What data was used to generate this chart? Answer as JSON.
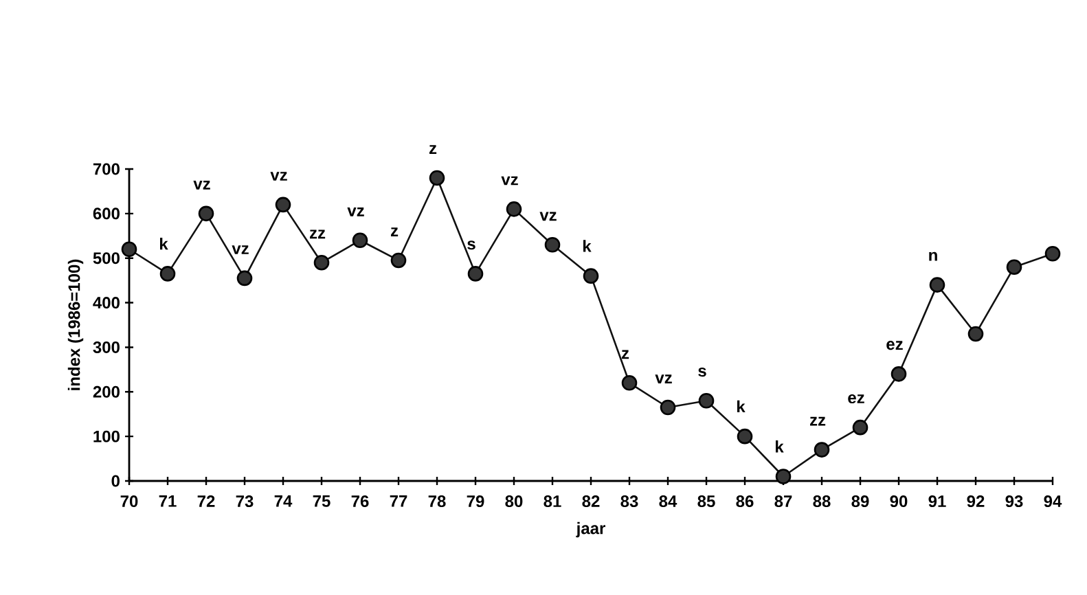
{
  "chart_data": {
    "type": "line",
    "xlabel": "jaar",
    "ylabel": "index (1986=100)",
    "categories": [
      "70",
      "71",
      "72",
      "73",
      "74",
      "75",
      "76",
      "77",
      "78",
      "79",
      "80",
      "81",
      "82",
      "83",
      "84",
      "85",
      "86",
      "87",
      "88",
      "89",
      "90",
      "91",
      "92",
      "93",
      "94"
    ],
    "values": [
      520,
      465,
      600,
      455,
      620,
      490,
      540,
      495,
      680,
      465,
      610,
      530,
      460,
      220,
      165,
      180,
      100,
      10,
      70,
      120,
      240,
      440,
      330,
      480,
      510
    ],
    "value_labels": [
      null,
      "k",
      "vz",
      "vz",
      "vz",
      "zz",
      "vz",
      "z",
      "z",
      "s",
      "vz",
      "vz",
      "k",
      "z",
      "vz",
      "s",
      "k",
      "k",
      "zz",
      "ez",
      "ez",
      "n",
      null,
      null,
      null
    ],
    "color": "#111111",
    "ylim": [
      0,
      700
    ],
    "yticks": [
      0,
      100,
      200,
      300,
      400,
      500,
      600,
      700
    ],
    "grid": false,
    "marker": "circle",
    "line_style": "solid"
  }
}
